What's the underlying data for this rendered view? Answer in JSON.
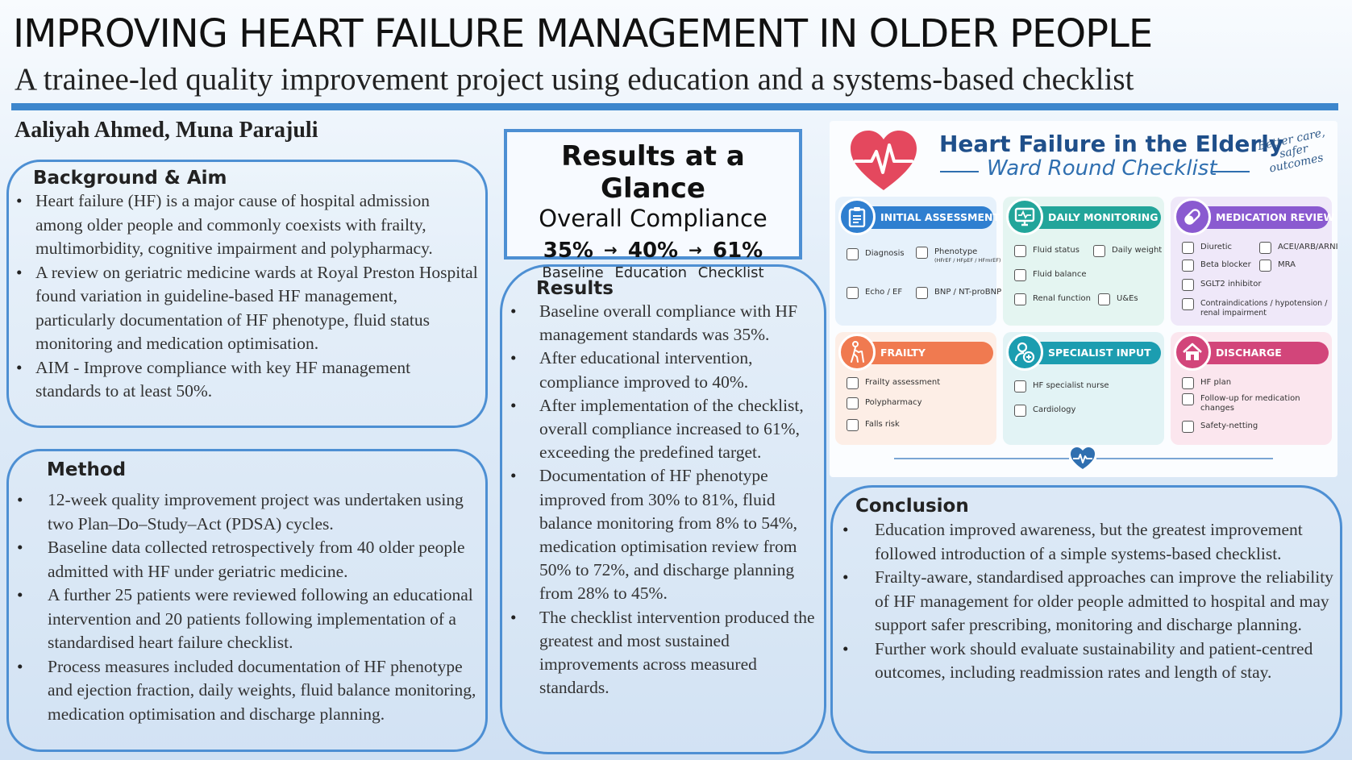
{
  "header": {
    "title": "IMPROVING HEART FAILURE MANAGEMENT IN OLDER PEOPLE",
    "subtitle": "A trainee-led quality improvement project using education and a systems-based checklist",
    "authors": "Aaliyah Ahmed, Muna Parajuli"
  },
  "background": {
    "heading": "Background & Aim",
    "bullets": [
      "Heart failure (HF) is a major cause of hospital admission among older people and commonly coexists with frailty, multimorbidity, cognitive impairment and polypharmacy.",
      "A review on geriatric medicine wards at Royal Preston Hospital found variation in guideline-based HF management, particularly documentation of HF phenotype, fluid status monitoring and medication optimisation.",
      "AIM - Improve compliance with key HF management standards to at least 50%."
    ]
  },
  "method": {
    "heading": "Method",
    "bullets": [
      "12-week quality improvement project was undertaken using two Plan–Do–Study–Act (PDSA) cycles.",
      "Baseline data collected retrospectively from 40 older people admitted with HF under geriatric medicine.",
      "A further 25 patients were reviewed following an educational intervention and 20 patients following implementation of a standardised heart failure checklist.",
      "Process measures included documentation of HF phenotype and ejection fraction, daily weights, fluid balance monitoring, medication optimisation and discharge planning."
    ]
  },
  "glance": {
    "title": "Results at a Glance",
    "subtitle": "Overall Compliance",
    "values": [
      "35%",
      "40%",
      "61%"
    ],
    "arrow": "→",
    "labels": [
      "Baseline",
      "Education",
      "Checklist"
    ]
  },
  "results": {
    "heading": "Results",
    "bullets": [
      "Baseline overall compliance with HF management standards was 35%.",
      "After educational intervention, compliance improved to 40%.",
      "After implementation of the checklist, overall compliance increased to 61%, exceeding the predefined target.",
      "Documentation of HF phenotype improved from 30% to 81%, fluid balance monitoring from 8% to 54%, medication optimisation review from 50% to 72%, and discharge planning from 28% to 45%.",
      "The checklist intervention produced the greatest and most sustained improvements across measured standards."
    ]
  },
  "checklist": {
    "title": "Heart Failure in the Elderly",
    "subtitle": "Ward Round Checklist",
    "tagline": "Better care, safer outcomes",
    "colors": {
      "initial": "#2f7fd0",
      "daily": "#22a59a",
      "medication": "#8a5ad0",
      "frailty": "#f07a50",
      "specialist": "#1c9db0",
      "discharge": "#d2457a"
    },
    "cards": {
      "initial": {
        "title": "INITIAL ASSESSMENT",
        "icon": "clipboard-icon",
        "items": [
          "Diagnosis",
          "Phenotype",
          "Echo / EF",
          "BNP / NT-proBNP"
        ],
        "phenotype_note": "(HFrEF / HFpEF / HFmrEF)"
      },
      "daily": {
        "title": "DAILY MONITORING",
        "icon": "monitor-icon",
        "items": [
          "Fluid status",
          "Daily weight",
          "Fluid balance",
          "Renal function",
          "U&Es"
        ]
      },
      "medication": {
        "title": "MEDICATION REVIEW",
        "icon": "pill-icon",
        "items": [
          "Diuretic",
          "ACEI/ARB/ARNI",
          "Beta blocker",
          "MRA",
          "SGLT2 inhibitor",
          "Contraindications / hypotension / renal impairment"
        ]
      },
      "frailty": {
        "title": "FRAILTY",
        "icon": "walking-cane-icon",
        "items": [
          "Frailty assessment",
          "Polypharmacy",
          "Falls risk"
        ]
      },
      "specialist": {
        "title": "SPECIALIST INPUT",
        "icon": "specialist-icon",
        "items": [
          "HF specialist nurse",
          "Cardiology"
        ]
      },
      "discharge": {
        "title": "DISCHARGE",
        "icon": "home-icon",
        "items": [
          "HF plan",
          "Follow-up for medication changes",
          "Safety-netting"
        ]
      }
    }
  },
  "conclusion": {
    "heading": "Conclusion",
    "bullets": [
      "Education improved awareness, but the greatest improvement followed introduction of a simple systems-based checklist.",
      "Frailty-aware, standardised approaches can improve the reliability of HF management for older people admitted to hospital and may support safer prescribing, monitoring and discharge planning.",
      "Further work should evaluate sustainability and patient-centred outcomes, including readmission rates and length of stay."
    ]
  }
}
